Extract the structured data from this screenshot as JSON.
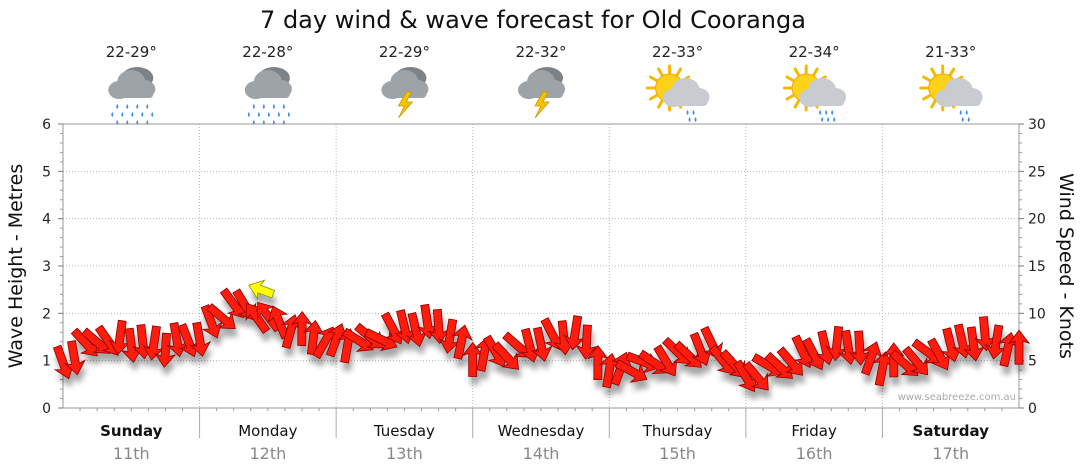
{
  "chart_data": {
    "type": "line",
    "title": "7 day wind & wave forecast for Old Cooranga",
    "ylabel_left": "Wave Height - Metres",
    "ylabel_right": "Wind Speed - Knots",
    "ylim_left": [
      0,
      6
    ],
    "ylim_right": [
      0,
      30
    ],
    "yticks_left": [
      "0",
      "1",
      "2",
      "3",
      "4",
      "5",
      "6"
    ],
    "yticks_right": [
      "0",
      "5",
      "10",
      "15",
      "20",
      "25",
      "30"
    ],
    "days": [
      {
        "name": "Sunday",
        "date": "11th",
        "temp": "22-29°",
        "icon": "rain-cloud-icon",
        "bold": true
      },
      {
        "name": "Monday",
        "date": "12th",
        "temp": "22-28°",
        "icon": "rain-cloud-icon",
        "bold": false
      },
      {
        "name": "Tuesday",
        "date": "13th",
        "temp": "22-29°",
        "icon": "storm-cloud-icon",
        "bold": false
      },
      {
        "name": "Wednesday",
        "date": "14th",
        "temp": "22-32°",
        "icon": "storm-cloud-icon",
        "bold": false
      },
      {
        "name": "Thursday",
        "date": "15th",
        "temp": "22-33°",
        "icon": "sun-shower-icon",
        "bold": false
      },
      {
        "name": "Friday",
        "date": "16th",
        "temp": "22-34°",
        "icon": "sun-rain-icon",
        "bold": false
      },
      {
        "name": "Saturday",
        "date": "17th",
        "temp": "21-33°",
        "icon": "sun-shower-icon",
        "bold": true
      }
    ],
    "series": [
      {
        "name": "Wind (knots)",
        "t": [
          0.0,
          0.25,
          0.5,
          0.75,
          1.0,
          1.25,
          1.5,
          1.75,
          2.0,
          2.25,
          2.5,
          2.75,
          3.0,
          3.25,
          3.5,
          3.75,
          4.0,
          4.25,
          4.5,
          4.75,
          5.0,
          5.25,
          5.5,
          5.75,
          6.0,
          6.25,
          6.5,
          6.75,
          7.0
        ],
        "knots": [
          4.8,
          7.2,
          7.0,
          6.5,
          7.5,
          11.0,
          9.5,
          8.0,
          6.8,
          7.2,
          8.5,
          8.8,
          5.5,
          5.8,
          7.0,
          8.0,
          3.8,
          4.5,
          5.5,
          6.5,
          3.2,
          4.5,
          6.0,
          6.8,
          4.5,
          5.0,
          6.5,
          7.5,
          6.0
        ],
        "direction_deg": [
          250,
          230,
          270,
          270,
          250,
          230,
          60,
          100,
          110,
          210,
          250,
          270,
          100,
          230,
          250,
          270,
          100,
          210,
          230,
          240,
          230,
          220,
          250,
          270,
          100,
          220,
          250,
          270,
          100
        ]
      }
    ],
    "highlight": {
      "t": 1.45,
      "knots": 12.5,
      "color": "#ffff00"
    },
    "watermark": "www.seabreeze.com.au"
  }
}
